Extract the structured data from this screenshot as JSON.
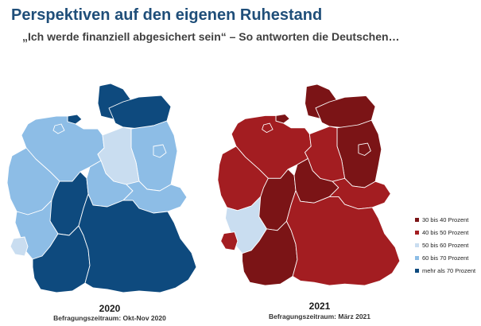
{
  "title": "Perspektiven auf den eigenen Ruhestand",
  "subtitle": "„Ich werde finanziell abgesichert sein“ – So antworten die Deutschen…",
  "maps": [
    {
      "year": "2020",
      "period": "Befragungszeitraum: Okt-Nov 2020"
    },
    {
      "year": "2021",
      "period": "Befragungszeitraum: März 2021"
    }
  ],
  "legend": [
    {
      "label": "30 bis 40 Prozent",
      "color": "#7b1416"
    },
    {
      "label": "40 bis 50 Prozent",
      "color": "#a31d21"
    },
    {
      "label": "50 bis 60 Prozent",
      "color": "#c9ddf0"
    },
    {
      "label": "60 bis 70 Prozent",
      "color": "#8dbde6"
    },
    {
      "label": "mehr als 70 Prozent",
      "color": "#0e4a7e"
    }
  ],
  "regions": [
    {
      "id": "SH",
      "c2020": 4,
      "c2021": 0
    },
    {
      "id": "HH",
      "c2020": 4,
      "c2021": 0
    },
    {
      "id": "MV",
      "c2020": 4,
      "c2021": 0
    },
    {
      "id": "NI",
      "c2020": 3,
      "c2021": 1
    },
    {
      "id": "HB",
      "c2020": 3,
      "c2021": 1
    },
    {
      "id": "BB",
      "c2020": 3,
      "c2021": 0
    },
    {
      "id": "BE",
      "c2020": 3,
      "c2021": 0
    },
    {
      "id": "ST",
      "c2020": 2,
      "c2021": 1
    },
    {
      "id": "NW",
      "c2020": 3,
      "c2021": 1
    },
    {
      "id": "HE",
      "c2020": 4,
      "c2021": 0
    },
    {
      "id": "TH",
      "c2020": 3,
      "c2021": 0
    },
    {
      "id": "SN",
      "c2020": 3,
      "c2021": 1
    },
    {
      "id": "RP",
      "c2020": 3,
      "c2021": 2
    },
    {
      "id": "SL",
      "c2020": 2,
      "c2021": 1
    },
    {
      "id": "BW",
      "c2020": 4,
      "c2021": 0
    },
    {
      "id": "BY",
      "c2020": 4,
      "c2021": 1
    }
  ]
}
